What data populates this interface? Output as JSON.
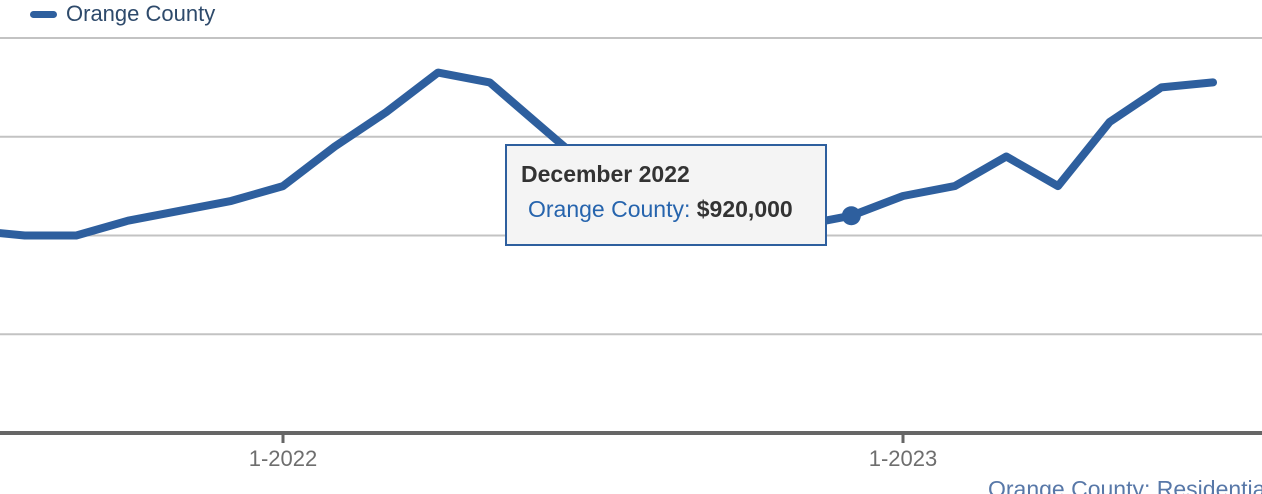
{
  "legend": {
    "series_label": "Orange County",
    "swatch_color": "#2e5f9e"
  },
  "tooltip": {
    "title": "December 2022",
    "series_label": "Orange County:",
    "value": "$920,000"
  },
  "footer": {
    "link_text": "Orange County: Residential"
  },
  "colors": {
    "line": "#2e5f9e",
    "marker": "#2e5f9e",
    "grid": "#c3c3c3",
    "axis": "#666666",
    "tick_label": "#6e6e6e",
    "legend_text": "#2e4a6b",
    "tooltip_bg": "#f4f4f4",
    "tooltip_border": "#2e5f9e",
    "tooltip_title": "#333333",
    "tooltip_series": "#2664ad",
    "tooltip_value": "#333333",
    "footer_link": "#5878a8"
  },
  "chart_data": {
    "type": "line",
    "title": "",
    "xlabel": "",
    "ylabel": "",
    "grid": true,
    "legend_position": "top-left",
    "y_axis": {
      "min": 700000,
      "max": 1150000,
      "gridline_step": 100000,
      "gridlines": [
        800000,
        900000,
        1000000,
        1100000
      ],
      "labels_visible": false
    },
    "x_ticks": [
      {
        "label": "1-2022",
        "month": "2022-01"
      },
      {
        "label": "1-2023",
        "month": "2023-01"
      }
    ],
    "series": [
      {
        "name": "Orange County",
        "color": "#2e5f9e",
        "points": [
          {
            "month": "2021-07",
            "value": 905000
          },
          {
            "month": "2021-08",
            "value": 900000
          },
          {
            "month": "2021-09",
            "value": 900000
          },
          {
            "month": "2021-10",
            "value": 915000
          },
          {
            "month": "2021-11",
            "value": 925000
          },
          {
            "month": "2021-12",
            "value": 935000
          },
          {
            "month": "2022-01",
            "value": 950000
          },
          {
            "month": "2022-02",
            "value": 990000
          },
          {
            "month": "2022-03",
            "value": 1025000
          },
          {
            "month": "2022-04",
            "value": 1065000
          },
          {
            "month": "2022-05",
            "value": 1055000
          },
          {
            "month": "2022-06",
            "value": 1010000
          },
          {
            "month": "2022-07",
            "value": 965000
          },
          {
            "month": "2022-08",
            "value": 940000
          },
          {
            "month": "2022-09",
            "value": 930000
          },
          {
            "month": "2022-10",
            "value": 920000
          },
          {
            "month": "2022-11",
            "value": 910000
          },
          {
            "month": "2022-12",
            "value": 920000
          },
          {
            "month": "2023-01",
            "value": 940000
          },
          {
            "month": "2023-02",
            "value": 950000
          },
          {
            "month": "2023-03",
            "value": 980000
          },
          {
            "month": "2023-04",
            "value": 950000
          },
          {
            "month": "2023-05",
            "value": 1015000
          },
          {
            "month": "2023-06",
            "value": 1050000
          },
          {
            "month": "2023-07",
            "value": 1055000
          }
        ]
      }
    ],
    "highlighted_point": {
      "series": "Orange County",
      "month": "2022-12",
      "value": 920000
    }
  }
}
